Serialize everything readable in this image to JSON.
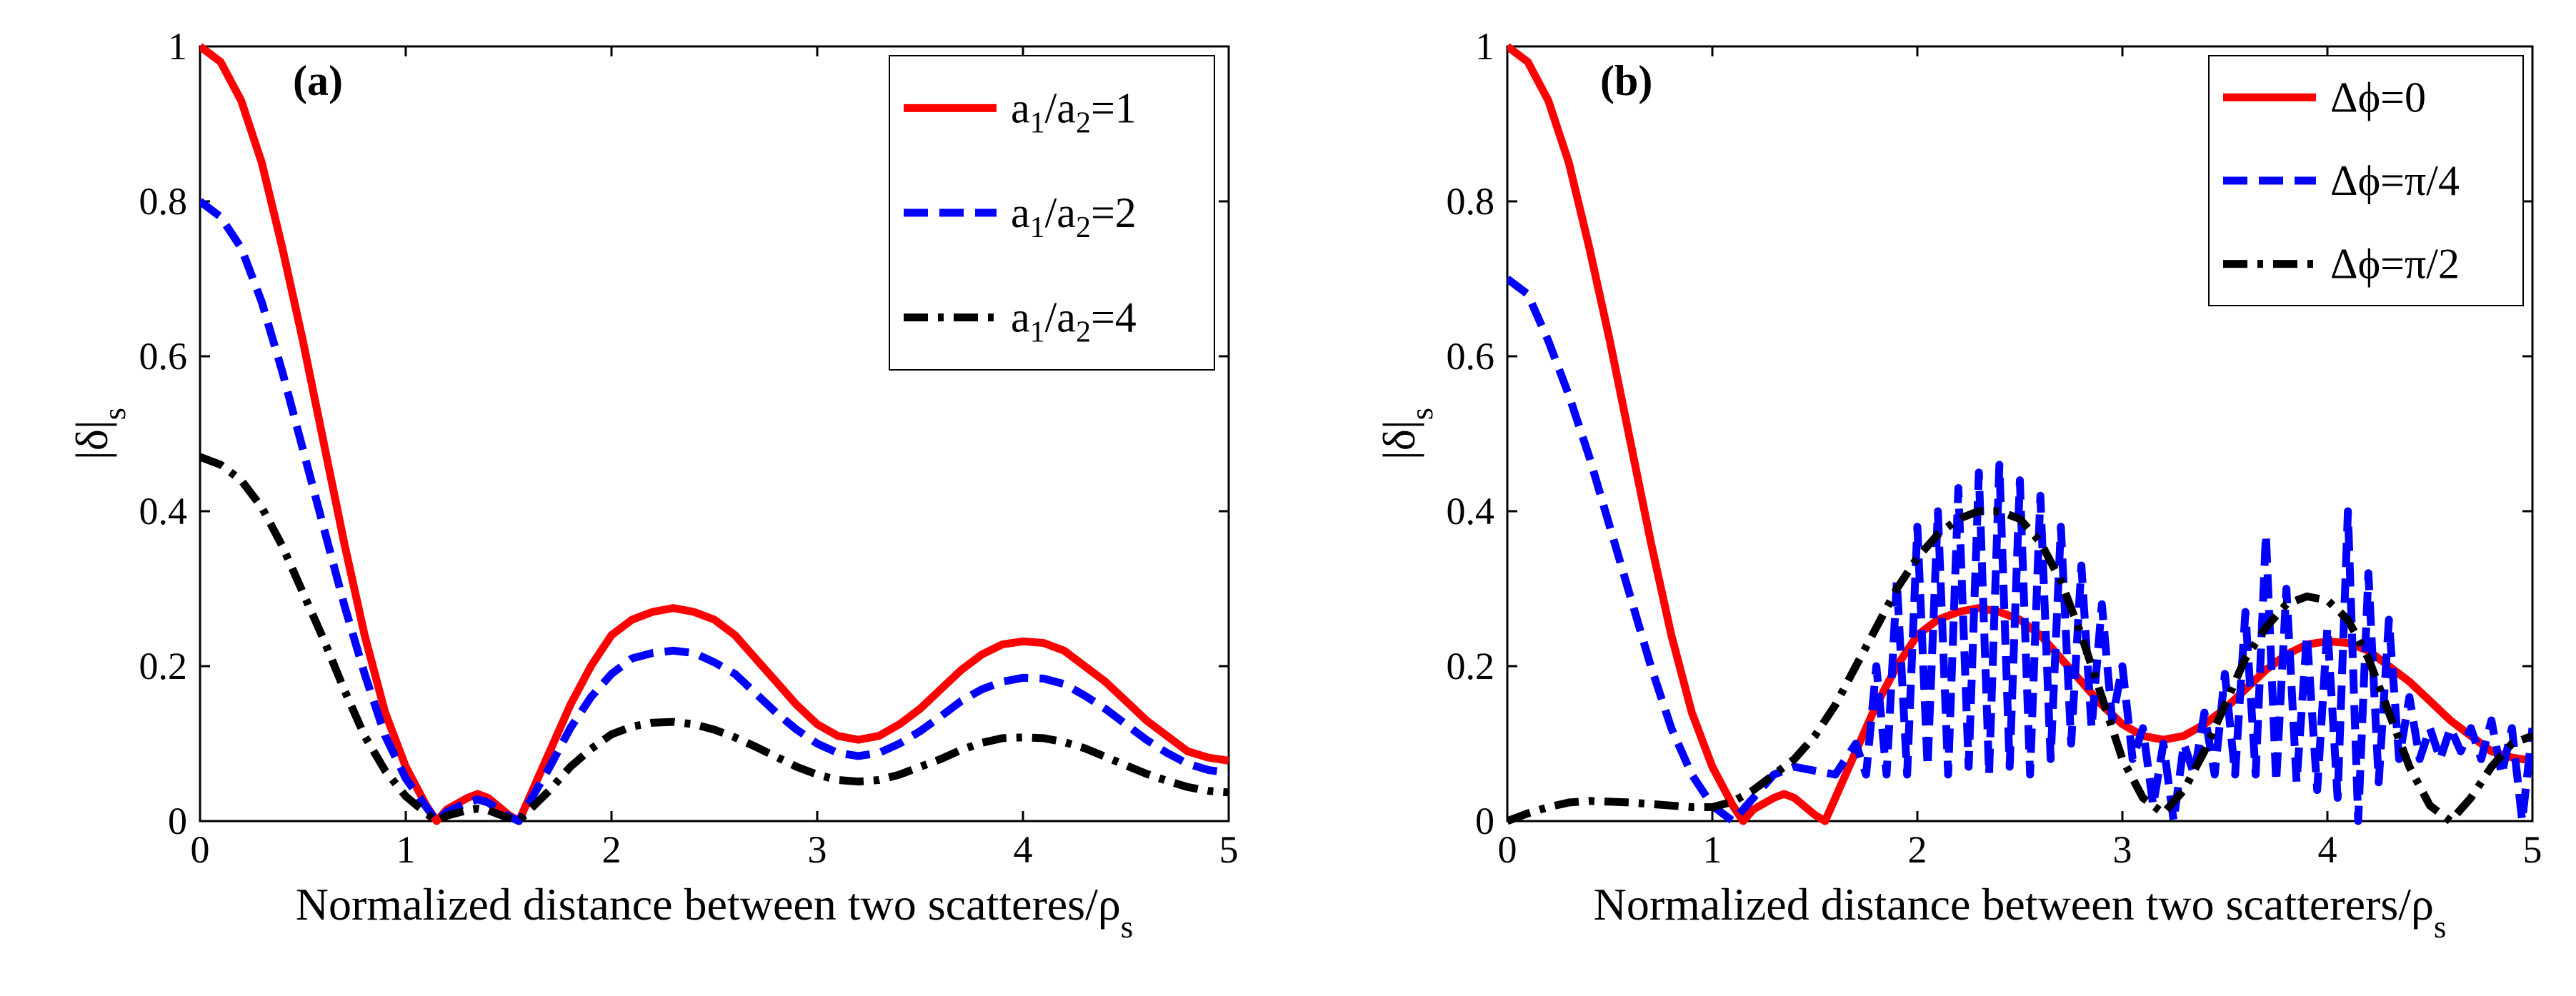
{
  "chart_data": [
    {
      "id": "a",
      "type": "line",
      "panel_label": "(a)",
      "title": "",
      "xlabel": "Normalized distance between two scatteres/ρ",
      "xlabel_sub": "s",
      "ylabel": "|δ|",
      "ylabel_sub": "s",
      "xlim": [
        0,
        5
      ],
      "ylim": [
        0,
        1
      ],
      "xticks": [
        0,
        1,
        2,
        3,
        4,
        5
      ],
      "yticks": [
        0,
        0.2,
        0.4,
        0.6,
        0.8,
        1
      ],
      "ytick_labels": [
        "0",
        "0.2",
        "0.4",
        "0.6",
        "0.8",
        "1"
      ],
      "legend_position": "top-right",
      "series": [
        {
          "name": "a1/a2=1",
          "legend_parts": [
            [
              "a",
              ""
            ],
            [
              "1",
              "sub"
            ],
            [
              "/a",
              ""
            ],
            [
              "2",
              "sub"
            ],
            [
              "=1",
              ""
            ]
          ],
          "color": "#ff0000",
          "dash": "solid",
          "x": [
            0,
            0.1,
            0.2,
            0.3,
            0.4,
            0.5,
            0.6,
            0.7,
            0.8,
            0.9,
            1.0,
            1.1,
            1.15,
            1.2,
            1.3,
            1.35,
            1.4,
            1.5,
            1.55,
            1.6,
            1.7,
            1.8,
            1.9,
            2.0,
            2.1,
            2.2,
            2.3,
            2.4,
            2.5,
            2.6,
            2.7,
            2.8,
            2.9,
            3.0,
            3.1,
            3.2,
            3.3,
            3.4,
            3.5,
            3.6,
            3.7,
            3.8,
            3.9,
            4.0,
            4.1,
            4.2,
            4.3,
            4.4,
            4.5,
            4.6,
            4.7,
            4.8,
            4.9,
            5.0
          ],
          "y": [
            1.0,
            0.98,
            0.93,
            0.85,
            0.74,
            0.62,
            0.49,
            0.36,
            0.24,
            0.14,
            0.07,
            0.02,
            0.0,
            0.015,
            0.03,
            0.035,
            0.03,
            0.008,
            0.0,
            0.03,
            0.09,
            0.15,
            0.2,
            0.24,
            0.26,
            0.27,
            0.275,
            0.27,
            0.26,
            0.24,
            0.21,
            0.18,
            0.15,
            0.125,
            0.11,
            0.105,
            0.11,
            0.125,
            0.145,
            0.17,
            0.195,
            0.215,
            0.228,
            0.232,
            0.23,
            0.22,
            0.2,
            0.18,
            0.155,
            0.13,
            0.11,
            0.09,
            0.082,
            0.078
          ]
        },
        {
          "name": "a1/a2=2",
          "legend_parts": [
            [
              "a",
              ""
            ],
            [
              "1",
              "sub"
            ],
            [
              "/a",
              ""
            ],
            [
              "2",
              "sub"
            ],
            [
              "=2",
              ""
            ]
          ],
          "color": "#0000ff",
          "dash": "dashed",
          "x": [
            0,
            0.1,
            0.2,
            0.3,
            0.4,
            0.5,
            0.6,
            0.7,
            0.8,
            0.9,
            1.0,
            1.1,
            1.15,
            1.2,
            1.3,
            1.35,
            1.4,
            1.5,
            1.55,
            1.6,
            1.7,
            1.8,
            1.9,
            2.0,
            2.1,
            2.2,
            2.3,
            2.4,
            2.5,
            2.6,
            2.7,
            2.8,
            2.9,
            3.0,
            3.1,
            3.2,
            3.3,
            3.4,
            3.5,
            3.6,
            3.7,
            3.8,
            3.9,
            4.0,
            4.1,
            4.2,
            4.3,
            4.4,
            4.5,
            4.6,
            4.7,
            4.8,
            4.9,
            5.0
          ],
          "y": [
            0.8,
            0.78,
            0.74,
            0.67,
            0.58,
            0.48,
            0.38,
            0.28,
            0.19,
            0.11,
            0.055,
            0.018,
            0.0,
            0.012,
            0.024,
            0.028,
            0.024,
            0.006,
            0.0,
            0.024,
            0.07,
            0.12,
            0.16,
            0.19,
            0.21,
            0.217,
            0.22,
            0.217,
            0.205,
            0.19,
            0.165,
            0.14,
            0.118,
            0.1,
            0.088,
            0.084,
            0.088,
            0.1,
            0.116,
            0.135,
            0.155,
            0.17,
            0.18,
            0.185,
            0.184,
            0.177,
            0.162,
            0.145,
            0.125,
            0.105,
            0.088,
            0.074,
            0.066,
            0.062
          ]
        },
        {
          "name": "a1/a2=4",
          "legend_parts": [
            [
              "a",
              ""
            ],
            [
              "1",
              "sub"
            ],
            [
              "/a",
              ""
            ],
            [
              "2",
              "sub"
            ],
            [
              "=4",
              ""
            ]
          ],
          "color": "#000000",
          "dash": "dashdot",
          "x": [
            0,
            0.1,
            0.2,
            0.3,
            0.4,
            0.5,
            0.6,
            0.7,
            0.8,
            0.9,
            1.0,
            1.1,
            1.15,
            1.2,
            1.3,
            1.35,
            1.4,
            1.5,
            1.55,
            1.6,
            1.7,
            1.8,
            1.9,
            2.0,
            2.1,
            2.2,
            2.3,
            2.4,
            2.5,
            2.6,
            2.7,
            2.8,
            2.9,
            3.0,
            3.1,
            3.2,
            3.3,
            3.4,
            3.5,
            3.6,
            3.7,
            3.8,
            3.9,
            4.0,
            4.1,
            4.2,
            4.3,
            4.4,
            4.5,
            4.6,
            4.7,
            4.8,
            4.9,
            5.0
          ],
          "y": [
            0.47,
            0.46,
            0.44,
            0.405,
            0.355,
            0.295,
            0.235,
            0.17,
            0.11,
            0.065,
            0.032,
            0.01,
            0.0,
            0.007,
            0.014,
            0.016,
            0.014,
            0.004,
            0.0,
            0.014,
            0.04,
            0.07,
            0.093,
            0.112,
            0.122,
            0.127,
            0.128,
            0.125,
            0.118,
            0.108,
            0.096,
            0.083,
            0.07,
            0.06,
            0.053,
            0.051,
            0.053,
            0.06,
            0.07,
            0.08,
            0.092,
            0.101,
            0.107,
            0.108,
            0.107,
            0.102,
            0.094,
            0.083,
            0.072,
            0.061,
            0.052,
            0.044,
            0.039,
            0.037
          ]
        }
      ]
    },
    {
      "id": "b",
      "type": "line",
      "panel_label": "(b)",
      "title": "",
      "xlabel": "Normalized distance between two scatterers/ρ",
      "xlabel_sub": "s",
      "ylabel": "|δ|",
      "ylabel_sub": "s",
      "xlim": [
        0,
        5
      ],
      "ylim": [
        0,
        1
      ],
      "xticks": [
        0,
        1,
        2,
        3,
        4,
        5
      ],
      "yticks": [
        0,
        0.2,
        0.4,
        0.6,
        0.8,
        1
      ],
      "ytick_labels": [
        "0",
        "0.2",
        "0.4",
        "0.6",
        "0.8",
        "1"
      ],
      "legend_position": "top-right",
      "series": [
        {
          "name": "Δϕ=0",
          "legend_parts": [
            [
              "Δϕ=0",
              ""
            ]
          ],
          "color": "#ff0000",
          "dash": "solid",
          "x": [
            0,
            0.1,
            0.2,
            0.3,
            0.4,
            0.5,
            0.6,
            0.7,
            0.8,
            0.9,
            1.0,
            1.1,
            1.15,
            1.2,
            1.3,
            1.35,
            1.4,
            1.5,
            1.55,
            1.6,
            1.7,
            1.8,
            1.9,
            2.0,
            2.1,
            2.2,
            2.3,
            2.4,
            2.5,
            2.6,
            2.7,
            2.8,
            2.9,
            3.0,
            3.1,
            3.2,
            3.3,
            3.4,
            3.5,
            3.6,
            3.7,
            3.8,
            3.9,
            4.0,
            4.1,
            4.2,
            4.3,
            4.4,
            4.5,
            4.6,
            4.7,
            4.8,
            4.9,
            5.0
          ],
          "y": [
            1.0,
            0.98,
            0.93,
            0.85,
            0.74,
            0.62,
            0.49,
            0.36,
            0.24,
            0.14,
            0.07,
            0.02,
            0.0,
            0.015,
            0.03,
            0.035,
            0.03,
            0.008,
            0.0,
            0.03,
            0.09,
            0.15,
            0.2,
            0.24,
            0.26,
            0.27,
            0.275,
            0.27,
            0.26,
            0.24,
            0.21,
            0.18,
            0.15,
            0.125,
            0.11,
            0.105,
            0.11,
            0.125,
            0.145,
            0.17,
            0.195,
            0.215,
            0.228,
            0.232,
            0.23,
            0.22,
            0.2,
            0.18,
            0.155,
            0.13,
            0.11,
            0.09,
            0.082,
            0.078
          ]
        },
        {
          "name": "Δϕ=π/4",
          "legend_parts": [
            [
              "Δϕ=π/4",
              ""
            ]
          ],
          "color": "#0000ff",
          "dash": "dashed",
          "x": [
            0,
            0.1,
            0.2,
            0.3,
            0.4,
            0.5,
            0.6,
            0.7,
            0.8,
            0.9,
            1.0,
            1.05,
            1.1,
            1.2,
            1.3,
            1.4,
            1.5,
            1.6,
            1.7,
            1.75,
            1.8,
            1.85,
            1.9,
            1.95,
            2.0,
            2.05,
            2.1,
            2.15,
            2.2,
            2.25,
            2.3,
            2.35,
            2.4,
            2.45,
            2.5,
            2.55,
            2.6,
            2.65,
            2.7,
            2.75,
            2.8,
            2.85,
            2.9,
            2.95,
            3.0,
            3.05,
            3.1,
            3.15,
            3.2,
            3.25,
            3.3,
            3.35,
            3.4,
            3.45,
            3.5,
            3.55,
            3.6,
            3.65,
            3.7,
            3.75,
            3.8,
            3.85,
            3.9,
            3.95,
            4.0,
            4.05,
            4.1,
            4.15,
            4.2,
            4.25,
            4.3,
            4.35,
            4.4,
            4.45,
            4.5,
            4.55,
            4.6,
            4.65,
            4.7,
            4.75,
            4.8,
            4.85,
            4.9,
            4.95,
            5.0
          ],
          "y": [
            0.7,
            0.68,
            0.62,
            0.55,
            0.47,
            0.38,
            0.29,
            0.2,
            0.12,
            0.06,
            0.02,
            0.01,
            0.0,
            0.03,
            0.06,
            0.07,
            0.065,
            0.06,
            0.1,
            0.06,
            0.2,
            0.06,
            0.31,
            0.06,
            0.38,
            0.07,
            0.4,
            0.06,
            0.43,
            0.07,
            0.45,
            0.06,
            0.46,
            0.07,
            0.44,
            0.06,
            0.42,
            0.08,
            0.38,
            0.1,
            0.33,
            0.12,
            0.28,
            0.13,
            0.2,
            0.08,
            0.12,
            0.02,
            0.1,
            0.0,
            0.1,
            0.06,
            0.14,
            0.06,
            0.19,
            0.06,
            0.27,
            0.06,
            0.37,
            0.05,
            0.3,
            0.05,
            0.24,
            0.04,
            0.25,
            0.03,
            0.4,
            0.0,
            0.32,
            0.05,
            0.26,
            0.08,
            0.16,
            0.08,
            0.12,
            0.08,
            0.12,
            0.09,
            0.12,
            0.08,
            0.13,
            0.06,
            0.12,
            0.0,
            0.12
          ]
        },
        {
          "name": "Δϕ=π/2",
          "legend_parts": [
            [
              "Δϕ=π/2",
              ""
            ]
          ],
          "color": "#000000",
          "dash": "dashdot",
          "x": [
            0,
            0.1,
            0.2,
            0.3,
            0.4,
            0.5,
            0.6,
            0.7,
            0.8,
            0.9,
            1.0,
            1.1,
            1.2,
            1.3,
            1.4,
            1.5,
            1.6,
            1.7,
            1.8,
            1.9,
            2.0,
            2.1,
            2.2,
            2.3,
            2.4,
            2.5,
            2.6,
            2.7,
            2.8,
            2.9,
            3.0,
            3.1,
            3.2,
            3.3,
            3.4,
            3.5,
            3.6,
            3.7,
            3.8,
            3.9,
            4.0,
            4.1,
            4.2,
            4.3,
            4.4,
            4.5,
            4.6,
            4.7,
            4.8,
            4.9,
            5.0
          ],
          "y": [
            0.0,
            0.01,
            0.018,
            0.024,
            0.026,
            0.025,
            0.024,
            0.022,
            0.02,
            0.018,
            0.018,
            0.025,
            0.04,
            0.06,
            0.08,
            0.11,
            0.15,
            0.2,
            0.25,
            0.3,
            0.34,
            0.37,
            0.39,
            0.4,
            0.4,
            0.39,
            0.36,
            0.31,
            0.24,
            0.16,
            0.08,
            0.03,
            0.01,
            0.04,
            0.09,
            0.15,
            0.21,
            0.25,
            0.28,
            0.29,
            0.285,
            0.26,
            0.21,
            0.14,
            0.07,
            0.02,
            0.0,
            0.03,
            0.07,
            0.1,
            0.11
          ]
        }
      ]
    }
  ]
}
